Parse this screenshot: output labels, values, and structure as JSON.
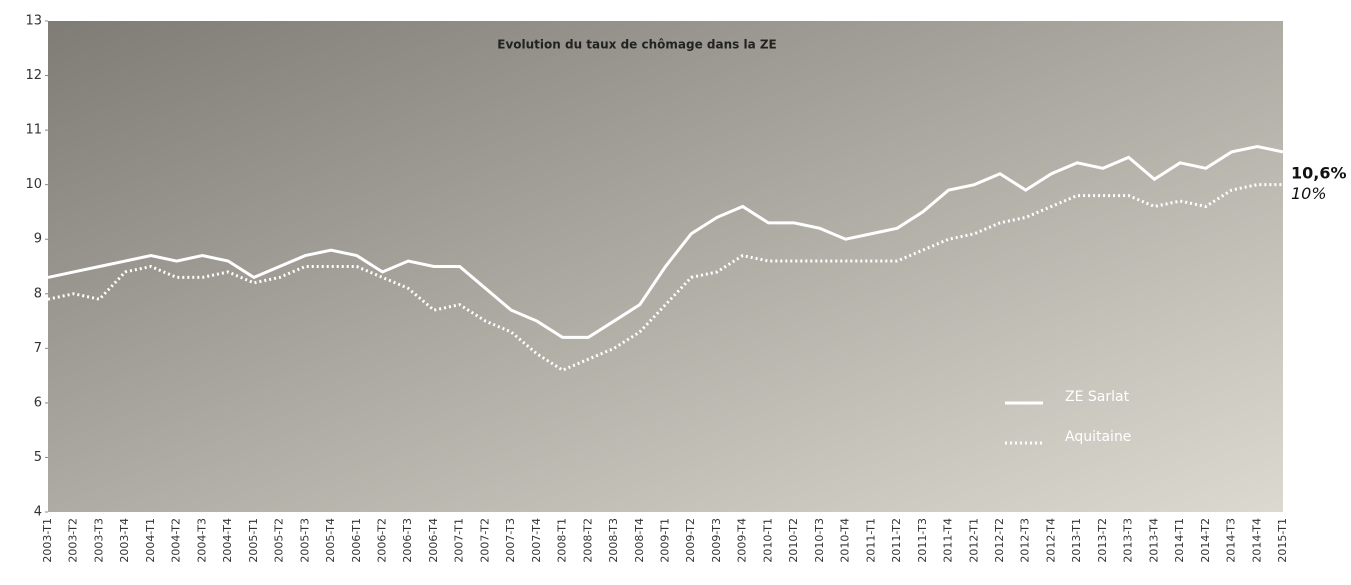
{
  "chart_data": {
    "type": "line",
    "title": "Evolution du taux de chômage dans la ZE",
    "categories": [
      "2003-T1",
      "2003-T2",
      "2003-T3",
      "2003-T4",
      "2004-T1",
      "2004-T2",
      "2004-T3",
      "2004-T4",
      "2005-T1",
      "2005-T2",
      "2005-T3",
      "2005-T4",
      "2006-T1",
      "2006-T2",
      "2006-T3",
      "2006-T4",
      "2007-T1",
      "2007-T2",
      "2007-T3",
      "2007-T4",
      "2008-T1",
      "2008-T2",
      "2008-T3",
      "2008-T4",
      "2009-T1",
      "2009-T2",
      "2009-T3",
      "2009-T4",
      "2010-T1",
      "2010-T2",
      "2010-T3",
      "2010-T4",
      "2011-T1",
      "2011-T2",
      "2011-T3",
      "2011-T4",
      "2012-T1",
      "2012-T2",
      "2012-T3",
      "2012-T4",
      "2013-T1",
      "2013-T2",
      "2013-T3",
      "2013-T4",
      "2014-T1",
      "2014-T2",
      "2014-T3",
      "2014-T4",
      "2015-T1"
    ],
    "series": [
      {
        "name": "ZE Sarlat",
        "color": "#ffffff",
        "style": "solid",
        "values": [
          8.3,
          8.4,
          8.5,
          8.6,
          8.7,
          8.6,
          8.7,
          8.6,
          8.3,
          8.5,
          8.7,
          8.8,
          8.7,
          8.4,
          8.6,
          8.5,
          8.5,
          8.1,
          7.7,
          7.5,
          7.2,
          7.2,
          7.5,
          7.8,
          8.5,
          9.1,
          9.4,
          9.6,
          9.3,
          9.3,
          9.2,
          9.0,
          9.1,
          9.2,
          9.5,
          9.9,
          10.0,
          10.2,
          9.9,
          10.2,
          10.4,
          10.3,
          10.5,
          10.1,
          10.4,
          10.3,
          10.6,
          10.7,
          10.6
        ],
        "value_labels": [
          null,
          null,
          null,
          null,
          null,
          null,
          null,
          null,
          null,
          null,
          null,
          null,
          null,
          null,
          null,
          null,
          null,
          null,
          null,
          null,
          null,
          null,
          null,
          null,
          null,
          null,
          null,
          null,
          null,
          null,
          null,
          null,
          null,
          null,
          null,
          null,
          null,
          null,
          null,
          null,
          null,
          null,
          null,
          null,
          null,
          null,
          null,
          null,
          "10,6%"
        ]
      },
      {
        "name": "Aquitaine",
        "color": "#ffffff",
        "style": "dotted",
        "values": [
          7.9,
          8.0,
          7.9,
          8.4,
          8.5,
          8.3,
          8.3,
          8.4,
          8.2,
          8.3,
          8.5,
          8.5,
          8.5,
          8.3,
          8.1,
          7.7,
          7.8,
          7.5,
          7.3,
          6.9,
          6.6,
          6.8,
          7.0,
          7.3,
          7.8,
          8.3,
          8.4,
          8.7,
          8.6,
          8.6,
          8.6,
          8.6,
          8.6,
          8.6,
          8.8,
          9.0,
          9.1,
          9.3,
          9.4,
          9.6,
          9.8,
          9.8,
          9.8,
          9.6,
          9.7,
          9.6,
          9.9,
          10.0,
          10.0
        ],
        "value_labels": [
          null,
          null,
          null,
          null,
          null,
          null,
          null,
          null,
          null,
          null,
          null,
          null,
          null,
          null,
          null,
          null,
          null,
          null,
          null,
          null,
          null,
          null,
          null,
          null,
          null,
          null,
          null,
          null,
          null,
          null,
          null,
          null,
          null,
          null,
          null,
          null,
          null,
          null,
          null,
          null,
          null,
          null,
          null,
          null,
          null,
          null,
          null,
          null,
          "10%"
        ]
      }
    ],
    "ylim": [
      4,
      13
    ],
    "yticks": [
      4,
      5,
      6,
      7,
      8,
      9,
      10,
      11,
      12,
      13
    ],
    "grid": false,
    "legend": "lower right"
  }
}
